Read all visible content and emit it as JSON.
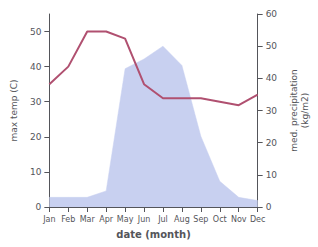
{
  "chart_data": {
    "type": "line",
    "categories": [
      "Jan",
      "Feb",
      "Mar",
      "Apr",
      "May",
      "Jun",
      "Jul",
      "Aug",
      "Sep",
      "Oct",
      "Nov",
      "Dec"
    ],
    "xlabel": "date (month)",
    "ylabel": "max temp (C)",
    "y2label": "med. precipitation\n(kg/m2)",
    "ylim": [
      0,
      55
    ],
    "yticks": [
      0,
      10,
      20,
      30,
      40,
      50
    ],
    "y2lim": [
      0,
      60
    ],
    "y2ticks": [
      0,
      10,
      20,
      30,
      40,
      50,
      60
    ],
    "grid": false,
    "series": [
      {
        "type": "area",
        "color": "#c8d0f0",
        "axis": "y2",
        "values": [
          3,
          3,
          3,
          5,
          43,
          46,
          50,
          44,
          22,
          8,
          3,
          2
        ]
      },
      {
        "type": "line",
        "color": "#b05070",
        "values": [
          35,
          40,
          50,
          50,
          48,
          35,
          31,
          31,
          31,
          30,
          29,
          32
        ]
      }
    ]
  }
}
